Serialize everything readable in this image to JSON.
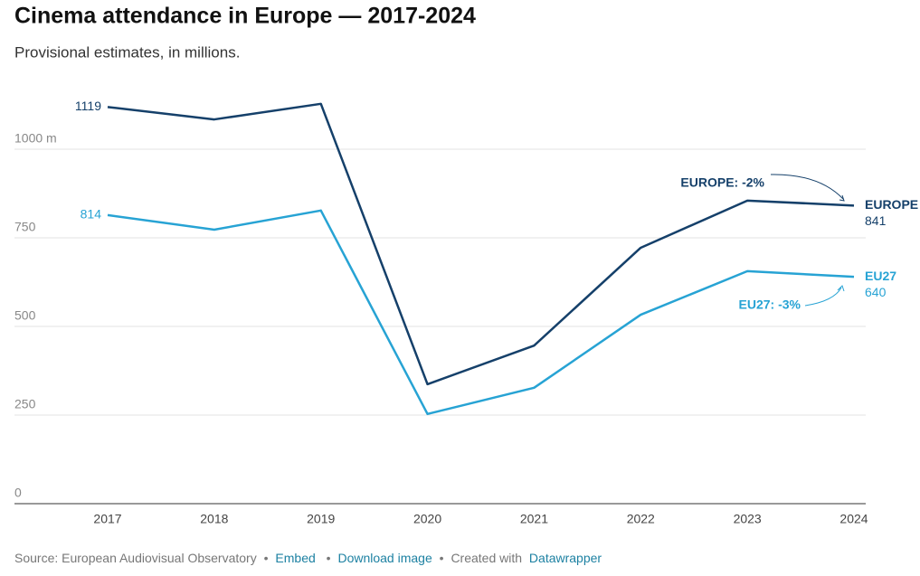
{
  "chart_data": {
    "type": "line",
    "title": "Cinema attendance in Europe — 2017-2024",
    "subtitle": "Provisional estimates, in millions.",
    "categories": [
      "2017",
      "2018",
      "2019",
      "2020",
      "2021",
      "2022",
      "2023",
      "2024"
    ],
    "series": [
      {
        "name": "EUROPE",
        "color": "#15406a",
        "values": [
          1119,
          1084,
          1128,
          337,
          446,
          722,
          855,
          841
        ]
      },
      {
        "name": "EU27",
        "color": "#27a3d4",
        "values": [
          814,
          773,
          827,
          253,
          327,
          533,
          656,
          640
        ]
      }
    ],
    "ylim": [
      0,
      1150
    ],
    "yticks": [
      0,
      250,
      500,
      750,
      {
        "value": 1000,
        "label": "1000 m"
      }
    ],
    "grid": true,
    "annotations": [
      "EUROPE: -2%",
      "EU27: -3%"
    ],
    "footer": {
      "source": "Source: European Audiovisual Observatory",
      "separator": "•",
      "embed": "Embed",
      "download": "Download image",
      "created": "Created with",
      "brand": "Datawrapper"
    }
  }
}
